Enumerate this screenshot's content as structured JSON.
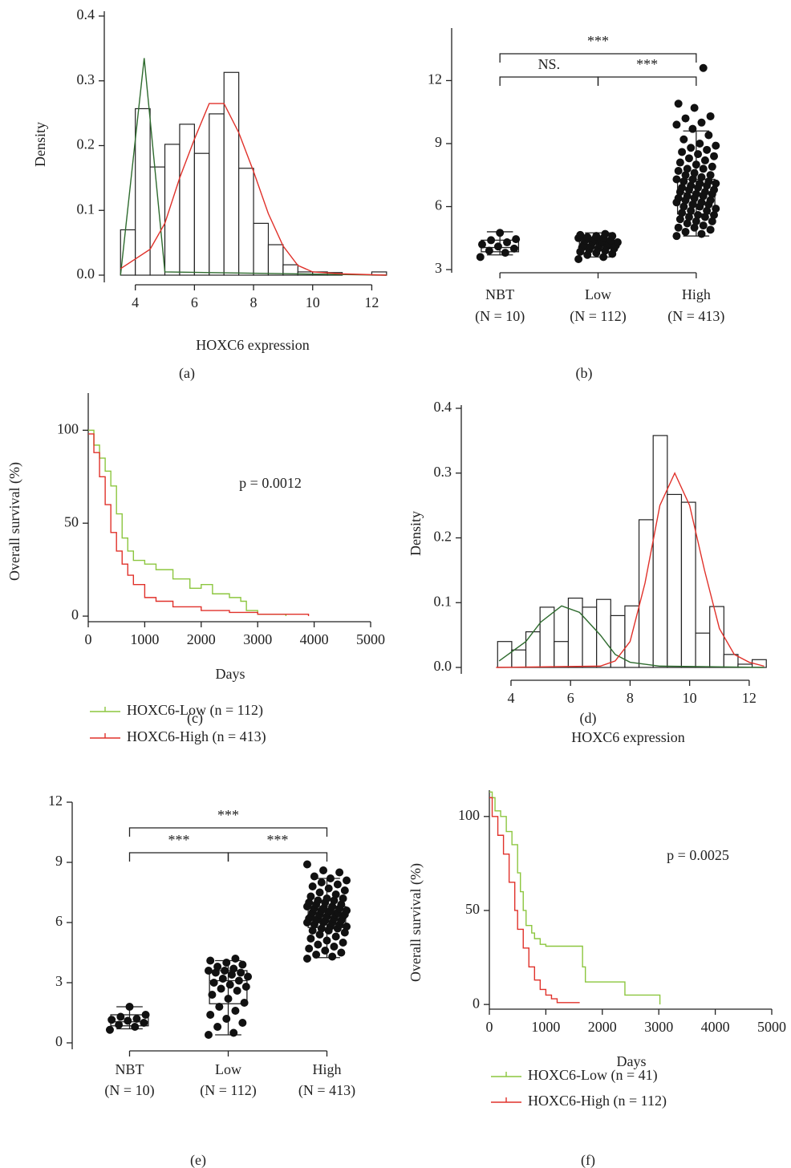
{
  "chart_data": [
    {
      "type": "histogram",
      "caption": "(a)",
      "xlabel": "HOXC6 expression",
      "ylabel": "Density",
      "bins": [
        3.5,
        4,
        4.5,
        5,
        5.5,
        6,
        6.5,
        7,
        7.5,
        8,
        8.5,
        9,
        9.5,
        10,
        10.5,
        11,
        11.5,
        12,
        12.5
      ],
      "counts": [
        0.07,
        0.257,
        0.167,
        0.202,
        0.233,
        0.188,
        0.249,
        0.313,
        0.165,
        0.08,
        0.047,
        0.016,
        0.005,
        0.005,
        0.004,
        0,
        0,
        0.005
      ],
      "lines": [
        {
          "color": "#2e6b2e",
          "x": [
            3.5,
            4.3,
            5,
            12.5
          ],
          "values": [
            0,
            0.335,
            0.005,
            0
          ]
        },
        {
          "color": "#e0312a",
          "x": [
            3.5,
            4.5,
            5,
            5.5,
            6,
            6.5,
            7,
            7.5,
            8,
            8.5,
            9,
            9.5,
            10,
            11,
            12.5
          ],
          "values": [
            0.01,
            0.04,
            0.08,
            0.15,
            0.21,
            0.265,
            0.265,
            0.22,
            0.16,
            0.095,
            0.045,
            0.015,
            0.005,
            0.002,
            0
          ]
        }
      ],
      "xlim": [
        2.95,
        12.45
      ],
      "ylim": [
        0,
        0.4
      ],
      "xticks": [
        4,
        6,
        8,
        10,
        12
      ],
      "yticks": [
        {
          "value": 0,
          "label": "0.0"
        },
        0.1,
        0.2,
        0.3,
        0.4
      ]
    },
    {
      "type": "box",
      "caption": "(b)",
      "categories": [
        "NBT",
        "Low",
        "High"
      ],
      "sublabels": [
        "(N = 10)",
        "(N = 112)",
        "(N = 413)"
      ],
      "boxes": [
        {
          "min": 3.7,
          "q1": 3.85,
          "median": 4.05,
          "q3": 4.4,
          "max": 4.8
        },
        {
          "min": 3.6,
          "q1": 4.05,
          "median": 4.2,
          "q3": 4.35,
          "max": 4.75
        },
        {
          "min": 4.6,
          "q1": 5.65,
          "median": 6.65,
          "q3": 7.3,
          "max": 9.6
        }
      ],
      "points": [
        [
          3.6,
          3.8,
          3.9,
          4.0,
          4.1,
          4.2,
          4.3,
          4.4,
          4.45,
          4.75
        ],
        [
          3.5,
          3.6,
          3.7,
          3.75,
          3.8,
          3.85,
          3.9,
          3.95,
          4.0,
          4.0,
          4.05,
          4.1,
          4.1,
          4.15,
          4.2,
          4.2,
          4.25,
          4.3,
          4.3,
          4.35,
          4.4,
          4.4,
          4.45,
          4.5,
          4.5,
          4.55,
          4.6,
          4.6,
          4.65,
          4.7
        ],
        [
          4.6,
          4.7,
          4.8,
          4.9,
          5.0,
          5.0,
          5.1,
          5.2,
          5.3,
          5.3,
          5.4,
          5.5,
          5.5,
          5.6,
          5.6,
          5.7,
          5.8,
          5.8,
          5.9,
          6.0,
          6.0,
          6.1,
          6.1,
          6.2,
          6.2,
          6.3,
          6.3,
          6.4,
          6.4,
          6.5,
          6.5,
          6.6,
          6.6,
          6.7,
          6.7,
          6.8,
          6.8,
          6.9,
          6.9,
          7.0,
          7.0,
          7.1,
          7.1,
          7.2,
          7.2,
          7.3,
          7.3,
          7.4,
          7.5,
          7.5,
          7.6,
          7.7,
          7.8,
          7.8,
          7.9,
          8.0,
          8.1,
          8.2,
          8.3,
          8.4,
          8.5,
          8.6,
          8.7,
          8.8,
          8.9,
          9.0,
          9.2,
          9.4,
          9.7,
          9.9,
          10.0,
          10.2,
          10.3,
          10.7,
          10.9,
          12.6
        ]
      ],
      "annotations": [
        {
          "text": "***",
          "pair": [
            "NBT",
            "High"
          ]
        },
        {
          "text": "NS.",
          "pair": [
            "NBT",
            "Low"
          ]
        },
        {
          "text": "***",
          "pair": [
            "Low",
            "High"
          ]
        }
      ],
      "ylim": [
        2.85,
        14.5
      ],
      "yticks": [
        3,
        6,
        9,
        12
      ]
    },
    {
      "type": "survival",
      "caption": "(c)",
      "xlabel": "Days",
      "ylabel": "Overall survival (%)",
      "annotation": "p = 0.0012",
      "series": [
        {
          "name": "HOXC6-Low (n = 112)",
          "color": "#8cc63f",
          "x": [
            0,
            100,
            200,
            300,
            400,
            500,
            600,
            700,
            800,
            1000,
            1200,
            1500,
            1800,
            2000,
            2200,
            2500,
            2700,
            2800,
            3000,
            3500
          ],
          "values": [
            100,
            92,
            85,
            78,
            70,
            55,
            42,
            35,
            30,
            28,
            25,
            20,
            15,
            17,
            12,
            10,
            8,
            3,
            1,
            0
          ]
        },
        {
          "name": "HOXC6-High (n = 413)",
          "color": "#e0312a",
          "x": [
            0,
            100,
            200,
            300,
            400,
            500,
            600,
            700,
            800,
            1000,
            1200,
            1500,
            2000,
            2500,
            3000,
            3500,
            3900
          ],
          "values": [
            98,
            88,
            75,
            60,
            45,
            35,
            28,
            22,
            17,
            10,
            8,
            5,
            3,
            2,
            1,
            1,
            0
          ]
        }
      ],
      "xlim": [
        0,
        5000
      ],
      "ylim": [
        -3,
        120
      ],
      "xticks": [
        0,
        1000,
        2000,
        3000,
        4000,
        5000
      ],
      "yticks": [
        0,
        50,
        100
      ]
    },
    {
      "type": "histogram",
      "caption": "(d)",
      "xlabel": "HOXC6 expression",
      "ylabel": "Density",
      "bins": [
        3.55,
        4.025,
        4.5,
        4.975,
        5.45,
        5.925,
        6.4,
        6.875,
        7.35,
        7.825,
        8.3,
        8.775,
        9.25,
        9.725,
        10.2,
        10.675,
        11.15,
        11.625,
        12.1,
        12.575
      ],
      "counts": [
        0.04,
        0.027,
        0.055,
        0.093,
        0.04,
        0.107,
        0.093,
        0.105,
        0.08,
        0.095,
        0.228,
        0.358,
        0.267,
        0.255,
        0.053,
        0.094,
        0.02,
        0.005,
        0.012
      ],
      "lines": [
        {
          "color": "#2e6b2e",
          "x": [
            3.6,
            4.5,
            5,
            5.7,
            6.3,
            7,
            7.5,
            8,
            9,
            12.5
          ],
          "values": [
            0.01,
            0.04,
            0.07,
            0.095,
            0.085,
            0.05,
            0.02,
            0.008,
            0.002,
            0
          ]
        },
        {
          "color": "#e0312a",
          "x": [
            3.5,
            7,
            7.5,
            8,
            8.5,
            9,
            9.5,
            10,
            10.5,
            11,
            11.5,
            12,
            12.5
          ],
          "values": [
            0,
            0.002,
            0.01,
            0.04,
            0.13,
            0.25,
            0.3,
            0.25,
            0.15,
            0.06,
            0.02,
            0.008,
            0.002
          ]
        }
      ],
      "xlim": [
        2.33,
        12.65
      ],
      "ylim": [
        0,
        0.4
      ],
      "xticks": [
        4,
        6,
        8,
        10,
        12
      ],
      "yticks": [
        {
          "value": 0,
          "label": "0.0"
        },
        0.1,
        0.2,
        0.3,
        0.4
      ]
    },
    {
      "type": "box",
      "caption": "(e)",
      "categories": [
        "NBT",
        "Low",
        "High"
      ],
      "sublabels": [
        "(N = 10)",
        "(N = 112)",
        "(N = 413)"
      ],
      "boxes": [
        {
          "min": 0.7,
          "q1": 0.85,
          "median": 1.05,
          "q3": 1.4,
          "max": 1.8
        },
        {
          "min": 0.4,
          "q1": 1.95,
          "median": 3.1,
          "q3": 3.6,
          "max": 4.1
        },
        {
          "min": 4.25,
          "q1": 5.75,
          "median": 6.4,
          "q3": 6.8,
          "max": 8.2
        }
      ],
      "points": [
        [
          0.65,
          0.8,
          0.9,
          1.0,
          1.1,
          1.15,
          1.2,
          1.3,
          1.4,
          1.8
        ],
        [
          0.4,
          0.5,
          0.8,
          1.0,
          1.2,
          1.4,
          1.6,
          1.8,
          2.0,
          2.2,
          2.4,
          2.6,
          2.7,
          2.8,
          2.9,
          3.0,
          3.1,
          3.2,
          3.3,
          3.4,
          3.5,
          3.5,
          3.6,
          3.6,
          3.7,
          3.8,
          3.9,
          4.0,
          4.1,
          4.2
        ],
        [
          4.2,
          4.3,
          4.4,
          4.5,
          4.6,
          4.7,
          4.8,
          4.9,
          5.0,
          5.1,
          5.2,
          5.3,
          5.4,
          5.5,
          5.6,
          5.6,
          5.7,
          5.7,
          5.8,
          5.8,
          5.9,
          5.9,
          6.0,
          6.0,
          6.0,
          6.1,
          6.1,
          6.1,
          6.2,
          6.2,
          6.2,
          6.3,
          6.3,
          6.3,
          6.4,
          6.4,
          6.4,
          6.5,
          6.5,
          6.5,
          6.6,
          6.6,
          6.6,
          6.7,
          6.7,
          6.7,
          6.8,
          6.8,
          6.9,
          6.9,
          7.0,
          7.0,
          7.1,
          7.1,
          7.2,
          7.2,
          7.3,
          7.4,
          7.5,
          7.6,
          7.7,
          7.8,
          7.9,
          8.0,
          8.1,
          8.2,
          8.3,
          8.5,
          8.6,
          8.9
        ]
      ],
      "annotations": [
        {
          "text": "***",
          "pair": [
            "NBT",
            "High"
          ]
        },
        {
          "text": "***",
          "pair": [
            "NBT",
            "Low"
          ]
        },
        {
          "text": "***",
          "pair": [
            "Low",
            "High"
          ]
        }
      ],
      "ylim": [
        -0.3,
        12
      ],
      "yticks": [
        0,
        3,
        6,
        9,
        12
      ]
    },
    {
      "type": "survival",
      "caption": "(f)",
      "xlabel": "Days",
      "ylabel": "Overall survival (%)",
      "annotation": "p = 0.0025",
      "series": [
        {
          "name": "HOXC6-Low (n = 41)",
          "color": "#8cc63f",
          "x": [
            0,
            50,
            100,
            200,
            300,
            400,
            500,
            550,
            600,
            650,
            750,
            800,
            900,
            1000,
            1600,
            1650,
            1700,
            2100,
            2400,
            3000,
            3020
          ],
          "values": [
            113,
            110,
            103,
            100,
            92,
            85,
            70,
            60,
            50,
            42,
            38,
            35,
            32,
            31,
            31,
            20,
            12,
            12,
            5,
            5,
            0
          ]
        },
        {
          "name": "HOXC6-High (n = 112)",
          "color": "#e0312a",
          "x": [
            0,
            50,
            150,
            250,
            350,
            450,
            500,
            600,
            700,
            800,
            900,
            1000,
            1100,
            1200,
            1600
          ],
          "values": [
            110,
            100,
            90,
            80,
            65,
            50,
            40,
            30,
            20,
            13,
            8,
            5,
            3,
            1,
            1
          ]
        }
      ],
      "xlim": [
        0,
        5000
      ],
      "ylim": [
        -2.5,
        114
      ],
      "xticks": [
        0,
        1000,
        2000,
        3000,
        4000,
        5000
      ],
      "yticks": [
        0,
        50,
        100
      ]
    }
  ]
}
